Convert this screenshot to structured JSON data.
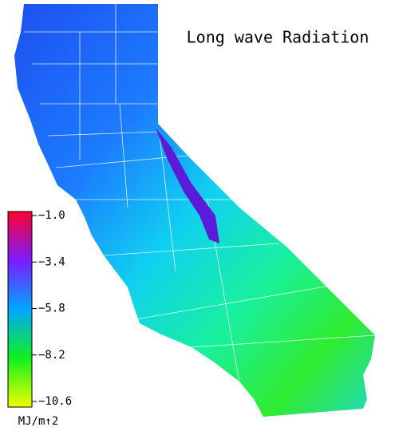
{
  "title": "Long wave Radiation",
  "colorbar": {
    "unit": "MJ/m↑2",
    "lim": [
      -10.6,
      -1.0
    ],
    "ticks": [
      {
        "value": -1.0,
        "label": "−1.0"
      },
      {
        "value": -3.4,
        "label": "−3.4"
      },
      {
        "value": -5.8,
        "label": "−5.8"
      },
      {
        "value": -8.2,
        "label": "−8.2"
      },
      {
        "value": -10.6,
        "label": "−10.6"
      }
    ],
    "colors": [
      "#ff0030",
      "#7a1cff",
      "#00a8ff",
      "#10f020",
      "#f0ff00"
    ]
  }
}
